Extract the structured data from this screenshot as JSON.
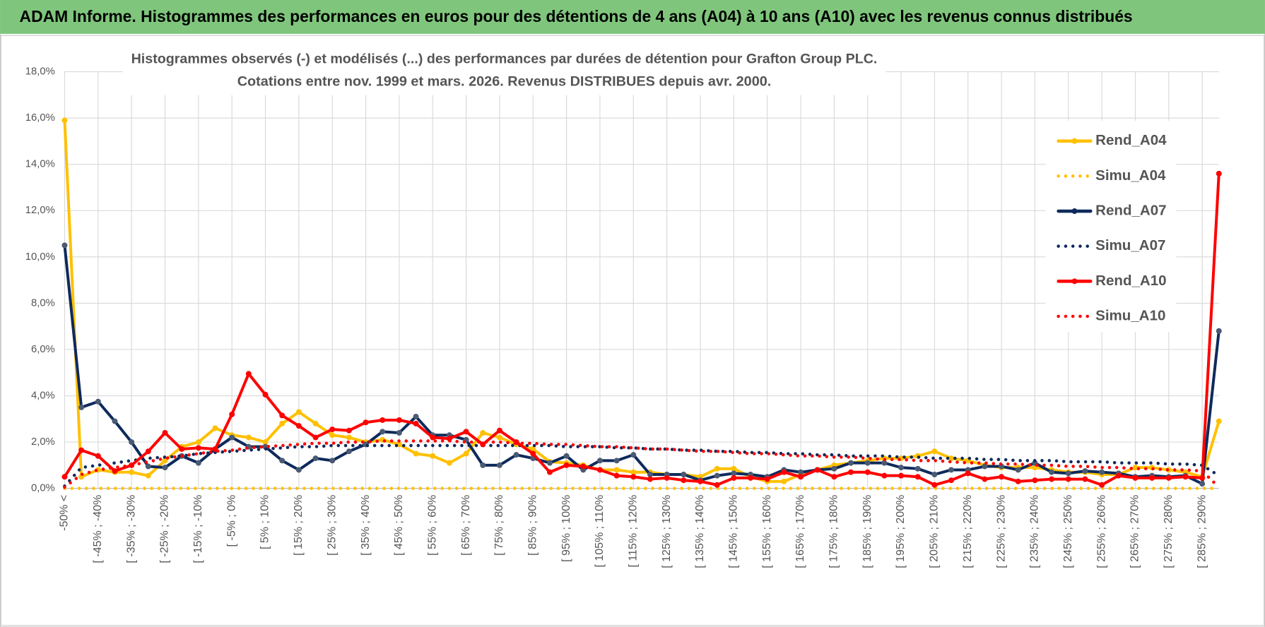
{
  "header": {
    "title": "ADAM Informe. Histogrammes des performances en euros pour des détentions de 4 ans (A04) à 10 ans (A10) avec les revenus connus distribués"
  },
  "chart_data": {
    "type": "line",
    "title": "Histogrammes observés (-) et modélisés (...) des performances par durées de détention pour Grafton Group PLC.",
    "subtitle": "Cotations entre nov. 1999 et mars. 2026.  Revenus DISTRIBUES depuis avr. 2000.",
    "categories": [
      "-50% <",
      null,
      "[ -45% ; -40%",
      null,
      "[ -35% ; -30%",
      null,
      "[ -25% ; -20%",
      null,
      "[ -15% ; -10%",
      null,
      "[ -5% ; 0%",
      null,
      "[ 5% ; 10%",
      null,
      "[ 15% ; 20%",
      null,
      "[ 25% ; 30%",
      null,
      "[ 35% ; 40%",
      null,
      "[ 45% ; 50%",
      null,
      "[ 55% ; 60%",
      null,
      "[ 65% ; 70%",
      null,
      "[ 75% ; 80%",
      null,
      "[ 85% ; 90%",
      null,
      "[ 95% ; 100%",
      null,
      "[ 105% ; 110%",
      null,
      "[ 115% ; 120%",
      null,
      "[ 125% ; 130%",
      null,
      "[ 135% ; 140%",
      null,
      "[ 145% ; 150%",
      null,
      "[ 155% ; 160%",
      null,
      "[ 165% ; 170%",
      null,
      "[ 175% ; 180%",
      null,
      "[ 185% ; 190%",
      null,
      "[ 195% ; 200%",
      null,
      "[ 205% ; 210%",
      null,
      "[ 215% ; 220%",
      null,
      "[ 225% ; 230%",
      null,
      "[ 235% ; 240%",
      null,
      "[ 245% ; 250%",
      null,
      "[ 255% ; 260%",
      null,
      "[ 265% ; 270%",
      null,
      "[ 275% ; 280%",
      null,
      "[ 285% ; 290%",
      null
    ],
    "series": [
      {
        "name": "Rend_A04",
        "color": "#ffc000",
        "style": "solid",
        "values": [
          15.9,
          0.5,
          0.8,
          0.7,
          0.7,
          0.55,
          1.2,
          1.8,
          2.0,
          2.6,
          2.3,
          2.2,
          2.0,
          2.8,
          3.3,
          2.8,
          2.3,
          2.2,
          2.0,
          2.1,
          1.9,
          1.5,
          1.4,
          1.1,
          1.5,
          2.4,
          2.2,
          1.9,
          1.7,
          1.15,
          1.1,
          1.0,
          0.8,
          0.8,
          0.7,
          0.7,
          0.6,
          0.6,
          0.5,
          0.85,
          0.85,
          0.5,
          0.3,
          0.3,
          0.6,
          0.8,
          1.0,
          1.1,
          1.2,
          1.3,
          1.3,
          1.4,
          1.6,
          1.3,
          1.2,
          1.0,
          0.9,
          0.9,
          0.9,
          0.8,
          0.7,
          0.7,
          0.6,
          0.6,
          0.9,
          0.9,
          0.8,
          0.7,
          0.5,
          2.9
        ]
      },
      {
        "name": "Simu_A04",
        "color": "#ffc000",
        "style": "dotted",
        "values": [
          0,
          0,
          0,
          0,
          0,
          0,
          0,
          0,
          0,
          0,
          0,
          0,
          0,
          0,
          0,
          0,
          0,
          0,
          0,
          0,
          0,
          0,
          0,
          0,
          0,
          0,
          0,
          0,
          0,
          0,
          0,
          0,
          0,
          0,
          0,
          0,
          0,
          0,
          0,
          0,
          0,
          0,
          0,
          0,
          0,
          0,
          0,
          0,
          0,
          0,
          0,
          0,
          0,
          0,
          0,
          0,
          0,
          0,
          0,
          0,
          0,
          0,
          0,
          0,
          0,
          0,
          0,
          0,
          0,
          0
        ]
      },
      {
        "name": "Rend_A07",
        "color": "#0e2a5c",
        "style": "solid",
        "values": [
          10.5,
          3.5,
          3.75,
          2.9,
          2.0,
          0.95,
          0.9,
          1.4,
          1.1,
          1.7,
          2.2,
          1.8,
          1.8,
          1.2,
          0.8,
          1.3,
          1.2,
          1.6,
          1.9,
          2.45,
          2.4,
          3.1,
          2.3,
          2.3,
          2.1,
          1.0,
          1.0,
          1.45,
          1.3,
          1.1,
          1.4,
          0.8,
          1.2,
          1.2,
          1.45,
          0.6,
          0.6,
          0.6,
          0.35,
          0.55,
          0.65,
          0.6,
          0.5,
          0.8,
          0.7,
          0.8,
          0.85,
          1.1,
          1.1,
          1.1,
          0.9,
          0.85,
          0.6,
          0.8,
          0.8,
          0.95,
          0.95,
          0.8,
          1.1,
          0.7,
          0.65,
          0.75,
          0.7,
          0.65,
          0.5,
          0.55,
          0.5,
          0.55,
          0.2,
          6.8
        ]
      },
      {
        "name": "Simu_A07",
        "color": "#0e2a5c",
        "style": "dotted",
        "values": [
          0.1,
          0.9,
          1.0,
          1.1,
          1.2,
          1.3,
          1.35,
          1.4,
          1.5,
          1.55,
          1.6,
          1.65,
          1.7,
          1.75,
          1.8,
          1.8,
          1.85,
          1.85,
          1.85,
          1.85,
          1.85,
          1.85,
          1.85,
          1.85,
          1.85,
          1.85,
          1.85,
          1.85,
          1.85,
          1.85,
          1.8,
          1.8,
          1.8,
          1.75,
          1.75,
          1.7,
          1.7,
          1.65,
          1.65,
          1.6,
          1.6,
          1.55,
          1.55,
          1.5,
          1.5,
          1.45,
          1.45,
          1.4,
          1.4,
          1.4,
          1.35,
          1.35,
          1.3,
          1.3,
          1.3,
          1.25,
          1.25,
          1.2,
          1.2,
          1.2,
          1.15,
          1.15,
          1.15,
          1.1,
          1.1,
          1.1,
          1.05,
          1.05,
          1.0,
          0.55
        ]
      },
      {
        "name": "Rend_A10",
        "color": "#ff0000",
        "style": "solid",
        "values": [
          0.5,
          1.65,
          1.4,
          0.75,
          1.0,
          1.6,
          2.4,
          1.7,
          1.75,
          1.7,
          3.2,
          4.95,
          4.05,
          3.15,
          2.7,
          2.2,
          2.55,
          2.5,
          2.85,
          2.95,
          2.95,
          2.8,
          2.2,
          2.15,
          2.45,
          1.9,
          2.5,
          2.0,
          1.5,
          0.7,
          1.0,
          0.95,
          0.8,
          0.55,
          0.5,
          0.4,
          0.45,
          0.35,
          0.3,
          0.15,
          0.45,
          0.45,
          0.4,
          0.7,
          0.5,
          0.8,
          0.5,
          0.7,
          0.7,
          0.55,
          0.55,
          0.5,
          0.15,
          0.35,
          0.65,
          0.4,
          0.5,
          0.3,
          0.35,
          0.4,
          0.4,
          0.4,
          0.15,
          0.55,
          0.45,
          0.45,
          0.45,
          0.5,
          0.45,
          13.6
        ]
      },
      {
        "name": "Simu_A10",
        "color": "#ff0000",
        "style": "dotted",
        "values": [
          0.05,
          0.6,
          0.8,
          0.9,
          1.0,
          1.15,
          1.3,
          1.4,
          1.5,
          1.6,
          1.65,
          1.75,
          1.8,
          1.85,
          1.9,
          1.95,
          1.95,
          2.0,
          2.0,
          2.05,
          2.05,
          2.05,
          2.05,
          2.05,
          2.0,
          2.0,
          2.0,
          1.95,
          1.95,
          1.9,
          1.9,
          1.85,
          1.8,
          1.8,
          1.75,
          1.7,
          1.7,
          1.65,
          1.6,
          1.6,
          1.55,
          1.5,
          1.5,
          1.45,
          1.4,
          1.4,
          1.35,
          1.35,
          1.3,
          1.25,
          1.25,
          1.2,
          1.2,
          1.15,
          1.1,
          1.1,
          1.05,
          1.05,
          1.0,
          1.0,
          0.95,
          0.95,
          0.9,
          0.9,
          0.85,
          0.85,
          0.8,
          0.8,
          0.75,
          0.05
        ]
      }
    ],
    "ylim": [
      0,
      18
    ],
    "yticks": [
      {
        "value": 0,
        "label": "0,0%"
      },
      {
        "value": 2,
        "label": "2,0%"
      },
      {
        "value": 4,
        "label": "4,0%"
      },
      {
        "value": 6,
        "label": "6,0%"
      },
      {
        "value": 8,
        "label": "8,0%"
      },
      {
        "value": 10,
        "label": "10,0%"
      },
      {
        "value": 12,
        "label": "12,0%"
      },
      {
        "value": 14,
        "label": "14,0%"
      },
      {
        "value": 16,
        "label": "16,0%"
      },
      {
        "value": 18,
        "label": "18,0%"
      }
    ],
    "grid": true,
    "legend": "right"
  }
}
